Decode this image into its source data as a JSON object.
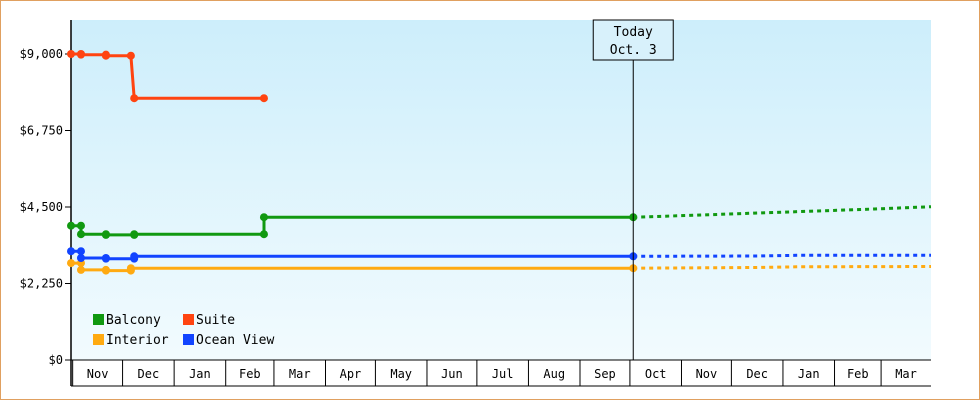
{
  "chart_data": {
    "type": "line",
    "title": "",
    "xlabel": "",
    "ylabel": "",
    "ylim": [
      0,
      10000
    ],
    "yticks": [
      0,
      2250,
      4500,
      6750,
      9000
    ],
    "ytick_labels": [
      "$0",
      "$2,250",
      "$4,500",
      "$6,750",
      "$9,000"
    ],
    "x_start": "2023-10-31",
    "x_end": "2025-03-31",
    "month_labels": [
      {
        "label": "Nov",
        "start": "2023-11-01",
        "end": "2023-12-01"
      },
      {
        "label": "Dec",
        "start": "2023-12-01",
        "end": "2024-01-01"
      },
      {
        "label": "Jan",
        "start": "2024-01-01",
        "end": "2024-02-01"
      },
      {
        "label": "Feb",
        "start": "2024-02-01",
        "end": "2024-03-01"
      },
      {
        "label": "Mar",
        "start": "2024-03-01",
        "end": "2024-04-01"
      },
      {
        "label": "Apr",
        "start": "2024-04-01",
        "end": "2024-05-01"
      },
      {
        "label": "May",
        "start": "2024-05-01",
        "end": "2024-06-01"
      },
      {
        "label": "Jun",
        "start": "2024-06-01",
        "end": "2024-07-01"
      },
      {
        "label": "Jul",
        "start": "2024-07-01",
        "end": "2024-08-01"
      },
      {
        "label": "Aug",
        "start": "2024-08-01",
        "end": "2024-09-01"
      },
      {
        "label": "Sep",
        "start": "2024-09-01",
        "end": "2024-10-01"
      },
      {
        "label": "Oct",
        "start": "2024-10-01",
        "end": "2024-11-01"
      },
      {
        "label": "Nov",
        "start": "2024-11-01",
        "end": "2024-12-01"
      },
      {
        "label": "Dec",
        "start": "2024-12-01",
        "end": "2025-01-01"
      },
      {
        "label": "Jan",
        "start": "2025-01-01",
        "end": "2025-02-01"
      },
      {
        "label": "Feb",
        "start": "2025-02-01",
        "end": "2025-03-01"
      },
      {
        "label": "Mar",
        "start": "2025-03-01",
        "end": "2025-03-31"
      }
    ],
    "today": {
      "label": "Today",
      "date_label": "Oct. 3",
      "date": "2024-10-03"
    },
    "legend": {
      "placement": "bottom-left"
    },
    "grid": false,
    "series": [
      {
        "name": "Balcony",
        "color": "#119911",
        "points": [
          [
            "2023-10-31",
            3950
          ],
          [
            "2023-11-06",
            3950
          ],
          [
            "2023-11-06",
            3700
          ],
          [
            "2023-11-21",
            3700
          ],
          [
            "2023-11-21",
            3680
          ],
          [
            "2023-12-08",
            3680
          ],
          [
            "2023-12-08",
            3700
          ],
          [
            "2024-02-24",
            3700
          ],
          [
            "2024-02-24",
            4200
          ],
          [
            "2024-10-03",
            4200
          ]
        ],
        "forecast": [
          [
            "2024-10-03",
            4200
          ],
          [
            "2024-11-10",
            4260
          ],
          [
            "2024-12-15",
            4320
          ],
          [
            "2025-01-20",
            4380
          ],
          [
            "2025-02-25",
            4440
          ],
          [
            "2025-03-31",
            4510
          ]
        ]
      },
      {
        "name": "Suite",
        "color": "#ff4411",
        "points": [
          [
            "2023-10-31",
            9000
          ],
          [
            "2023-11-06",
            9000
          ],
          [
            "2023-11-06",
            8980
          ],
          [
            "2023-11-21",
            8980
          ],
          [
            "2023-11-21",
            8950
          ],
          [
            "2023-12-06",
            8950
          ],
          [
            "2023-12-08",
            7700
          ],
          [
            "2024-02-24",
            7700
          ]
        ]
      },
      {
        "name": "Interior",
        "color": "#ffaa11",
        "points": [
          [
            "2023-10-31",
            2850
          ],
          [
            "2023-11-06",
            2850
          ],
          [
            "2023-11-06",
            2650
          ],
          [
            "2023-11-21",
            2650
          ],
          [
            "2023-11-21",
            2630
          ],
          [
            "2023-12-06",
            2630
          ],
          [
            "2023-12-06",
            2700
          ],
          [
            "2024-10-03",
            2700
          ]
        ],
        "forecast": [
          [
            "2024-10-03",
            2700
          ],
          [
            "2024-12-15",
            2720
          ],
          [
            "2025-01-10",
            2740
          ],
          [
            "2025-03-31",
            2750
          ]
        ]
      },
      {
        "name": "Ocean View",
        "color": "#1144ff",
        "points": [
          [
            "2023-10-31",
            3200
          ],
          [
            "2023-11-06",
            3200
          ],
          [
            "2023-11-06",
            3000
          ],
          [
            "2023-11-21",
            3000
          ],
          [
            "2023-11-21",
            2980
          ],
          [
            "2023-12-08",
            2980
          ],
          [
            "2023-12-08",
            3050
          ],
          [
            "2024-10-03",
            3050
          ]
        ],
        "forecast": [
          [
            "2024-10-03",
            3050
          ],
          [
            "2024-12-15",
            3060
          ],
          [
            "2025-01-10",
            3080
          ],
          [
            "2025-03-31",
            3080
          ]
        ]
      }
    ]
  }
}
